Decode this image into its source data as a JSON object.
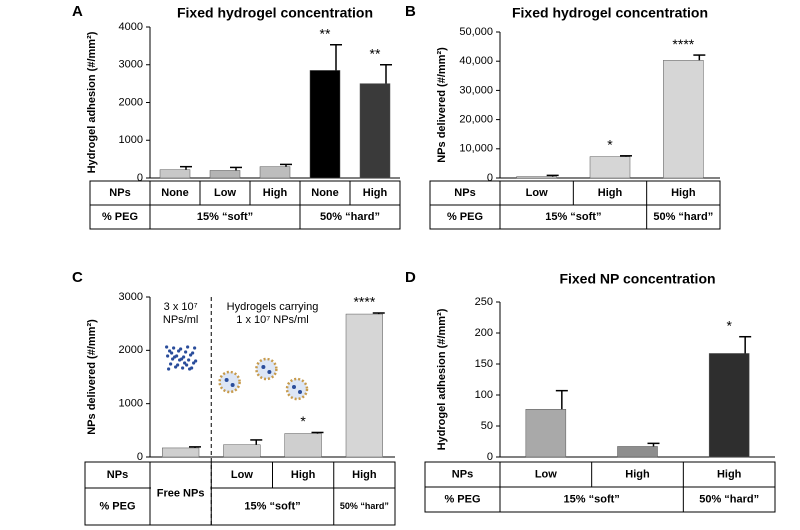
{
  "chart_data": [
    {
      "type": "bar",
      "panel": "A",
      "title": "Fixed hydrogel concentration",
      "y_label": "Hydrogel adhesion (#/mm²)",
      "categories": [
        "None",
        "Low",
        "High",
        "None",
        "High"
      ],
      "values": [
        220,
        200,
        300,
        2850,
        2500
      ],
      "errors": [
        80,
        80,
        60,
        680,
        500
      ],
      "significance": [
        null,
        null,
        null,
        "**",
        "**"
      ],
      "colors": [
        "#c8c8c8",
        "#b4b4b4",
        "#bdbdbd",
        "#000000",
        "#3a3a3a"
      ],
      "ylim": [
        0,
        4000
      ],
      "yticks": [
        0,
        1000,
        2000,
        3000,
        4000
      ],
      "row_labels": [
        "NPs",
        "% PEG"
      ],
      "peg_groups": [
        {
          "label": "15% “soft”",
          "span": 3
        },
        {
          "label": "50% “hard”",
          "span": 2
        }
      ]
    },
    {
      "type": "bar",
      "panel": "B",
      "title": "Fixed hydrogel concentration",
      "y_label": "NPs delivered (#/mm²)",
      "categories": [
        "Low",
        "High",
        "High"
      ],
      "values": [
        500,
        7300,
        40300
      ],
      "errors": [
        400,
        300,
        1800
      ],
      "significance": [
        null,
        "*",
        "****"
      ],
      "colors": [
        "#d6d6d6",
        "#d6d6d6",
        "#d6d6d6"
      ],
      "ylim": [
        0,
        50000
      ],
      "yticks": [
        0,
        {
          "value": 10000,
          "label": "10,000"
        },
        {
          "value": 20000,
          "label": "20,000"
        },
        {
          "value": 30000,
          "label": "30,000"
        },
        {
          "value": 40000,
          "label": "40,000"
        },
        {
          "value": 50000,
          "label": "50,000"
        }
      ],
      "row_labels": [
        "NPs",
        "% PEG"
      ],
      "peg_groups": [
        {
          "label": "15% “soft”",
          "span": 2
        },
        {
          "label": "50% “hard”",
          "span": 1
        }
      ]
    },
    {
      "type": "bar",
      "panel": "C",
      "y_label": "NPs delivered (#/mm²)",
      "categories": [
        "Free NPs",
        "Low",
        "High",
        "High"
      ],
      "values": [
        170,
        230,
        440,
        2680
      ],
      "errors": [
        20,
        90,
        20,
        20
      ],
      "significance": [
        null,
        null,
        "*",
        "****"
      ],
      "colors": [
        "#cfcfcf",
        "#cfcfcf",
        "#cfcfcf",
        "#d6d6d6"
      ],
      "ylim": [
        0,
        3000
      ],
      "yticks": [
        0,
        1000,
        2000,
        3000
      ],
      "annotations": [
        [
          "3 x 10⁷",
          "NPs/ml"
        ],
        [
          "Hydrogels carrying",
          "1 x 10⁷ NPs/ml"
        ]
      ],
      "row_labels": [
        "NPs",
        "% PEG"
      ],
      "peg_groups": [
        {
          "label": null,
          "span": 1
        },
        {
          "label": "15% “soft”",
          "span": 2
        },
        {
          "label": "50% “hard”",
          "span": 1
        }
      ]
    },
    {
      "type": "bar",
      "panel": "D",
      "title": "Fixed NP concentration",
      "y_label": "Hydrogel adhesion (#/mm²)",
      "categories": [
        "Low",
        "High",
        "High"
      ],
      "values": [
        77,
        17,
        167
      ],
      "errors": [
        30,
        5,
        27
      ],
      "significance": [
        null,
        null,
        "*"
      ],
      "colors": [
        "#a9a9a9",
        "#8e8e8e",
        "#2e2e2e"
      ],
      "ylim": [
        0,
        250
      ],
      "yticks": [
        0,
        50,
        100,
        150,
        200,
        250
      ],
      "row_labels": [
        "NPs",
        "% PEG"
      ],
      "peg_groups": [
        {
          "label": "15% “soft”",
          "span": 2
        },
        {
          "label": "50% “hard”",
          "span": 1
        }
      ]
    }
  ]
}
